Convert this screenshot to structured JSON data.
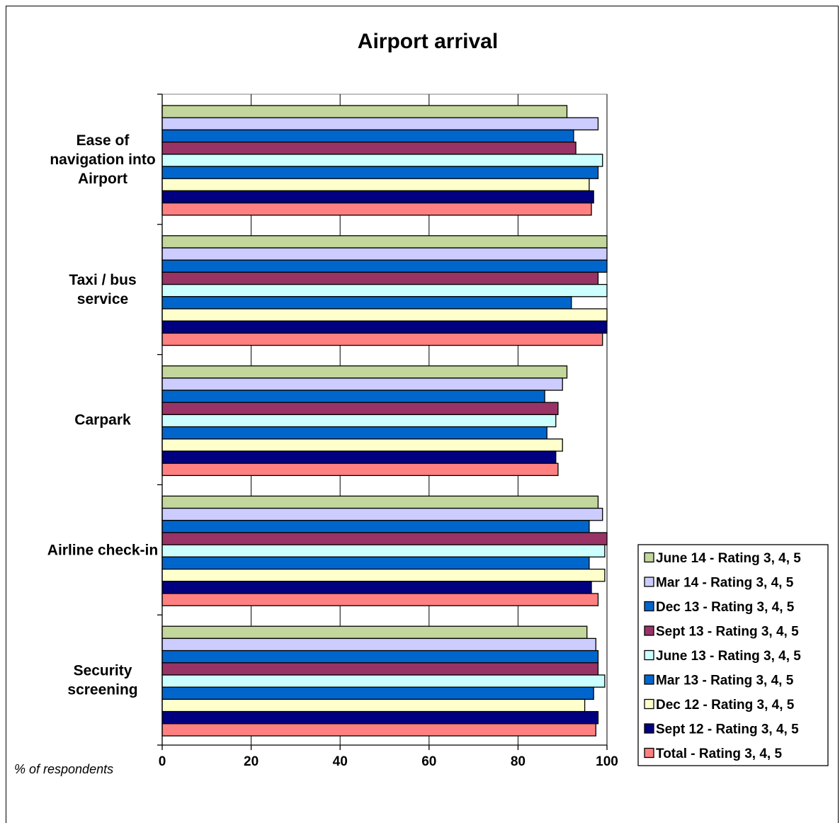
{
  "chart_data": {
    "type": "bar",
    "orientation": "horizontal",
    "title": "Airport arrival",
    "xlabel": "% of respondents",
    "ylabel": "",
    "xlim": [
      0,
      100
    ],
    "xticks": [
      "0",
      "20",
      "40",
      "60",
      "80",
      "100"
    ],
    "grid": true,
    "legend_position": "bottom-right",
    "categories": [
      "Ease of navigation into Airport",
      "Taxi / bus service",
      "Carpark",
      "Airline check-in",
      "Security screening"
    ],
    "category_lines": [
      [
        "Ease of",
        "navigation into",
        "Airport"
      ],
      [
        "Taxi / bus",
        "service"
      ],
      [
        "Carpark"
      ],
      [
        "Airline check-in"
      ],
      [
        "Security",
        "screening"
      ]
    ],
    "series": [
      {
        "name": "June 14 - Rating 3, 4, 5",
        "color": "#c3d69b",
        "values": [
          91,
          100,
          91,
          98,
          95.5
        ]
      },
      {
        "name": "Mar 14 - Rating 3, 4, 5",
        "color": "#ccccff",
        "values": [
          98,
          100,
          90,
          99,
          97.5
        ]
      },
      {
        "name": "Dec 13 - Rating 3, 4, 5",
        "color": "#0066cc",
        "values": [
          92.5,
          100,
          86,
          96,
          98
        ]
      },
      {
        "name": "Sept 13 - Rating 3, 4, 5",
        "color": "#993366",
        "values": [
          93,
          98,
          89,
          100,
          98
        ]
      },
      {
        "name": "June 13 - Rating 3, 4, 5",
        "color": "#ccffff",
        "values": [
          99,
          100,
          88.5,
          99.5,
          99.5
        ]
      },
      {
        "name": "Mar 13 - Rating 3, 4, 5",
        "color": "#0066cc",
        "values": [
          98,
          92,
          86.5,
          96,
          97
        ]
      },
      {
        "name": "Dec 12 - Rating 3, 4, 5",
        "color": "#ffffcc",
        "values": [
          96,
          100,
          90,
          99.5,
          95
        ]
      },
      {
        "name": "Sept 12 - Rating 3, 4, 5",
        "color": "#000080",
        "values": [
          97,
          100,
          88.5,
          96.5,
          98
        ]
      },
      {
        "name": "Total - Rating 3, 4, 5",
        "color": "#ff8080",
        "values": [
          96.5,
          99,
          89,
          98,
          97.5
        ]
      }
    ]
  }
}
